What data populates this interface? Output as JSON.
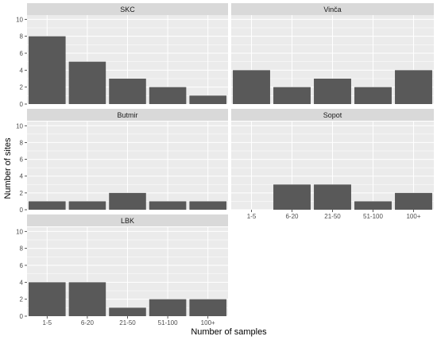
{
  "chart_data": {
    "type": "bar",
    "xlabel": "Number of samples",
    "ylabel": "Number of sites",
    "ylim": [
      0,
      10.5
    ],
    "yticks": [
      0,
      2,
      4,
      6,
      8,
      10
    ],
    "categories": [
      "1-5",
      "6-20",
      "21-50",
      "51-100",
      "100+"
    ],
    "grid": true,
    "colors": {
      "bar": "#595959",
      "panel_bg": "#ebebeb",
      "strip_bg": "#d9d9d9",
      "grid": "#ffffff"
    },
    "facets": [
      {
        "name": "SKC",
        "values": [
          8,
          5,
          3,
          2,
          1
        ]
      },
      {
        "name": "Vinča",
        "values": [
          4,
          2,
          3,
          2,
          4
        ]
      },
      {
        "name": "Butmir",
        "values": [
          1,
          1,
          2,
          1,
          1
        ]
      },
      {
        "name": "Sopot",
        "values": [
          0,
          3,
          3,
          1,
          2
        ]
      },
      {
        "name": "LBK",
        "values": [
          4,
          4,
          1,
          2,
          2
        ]
      }
    ]
  }
}
